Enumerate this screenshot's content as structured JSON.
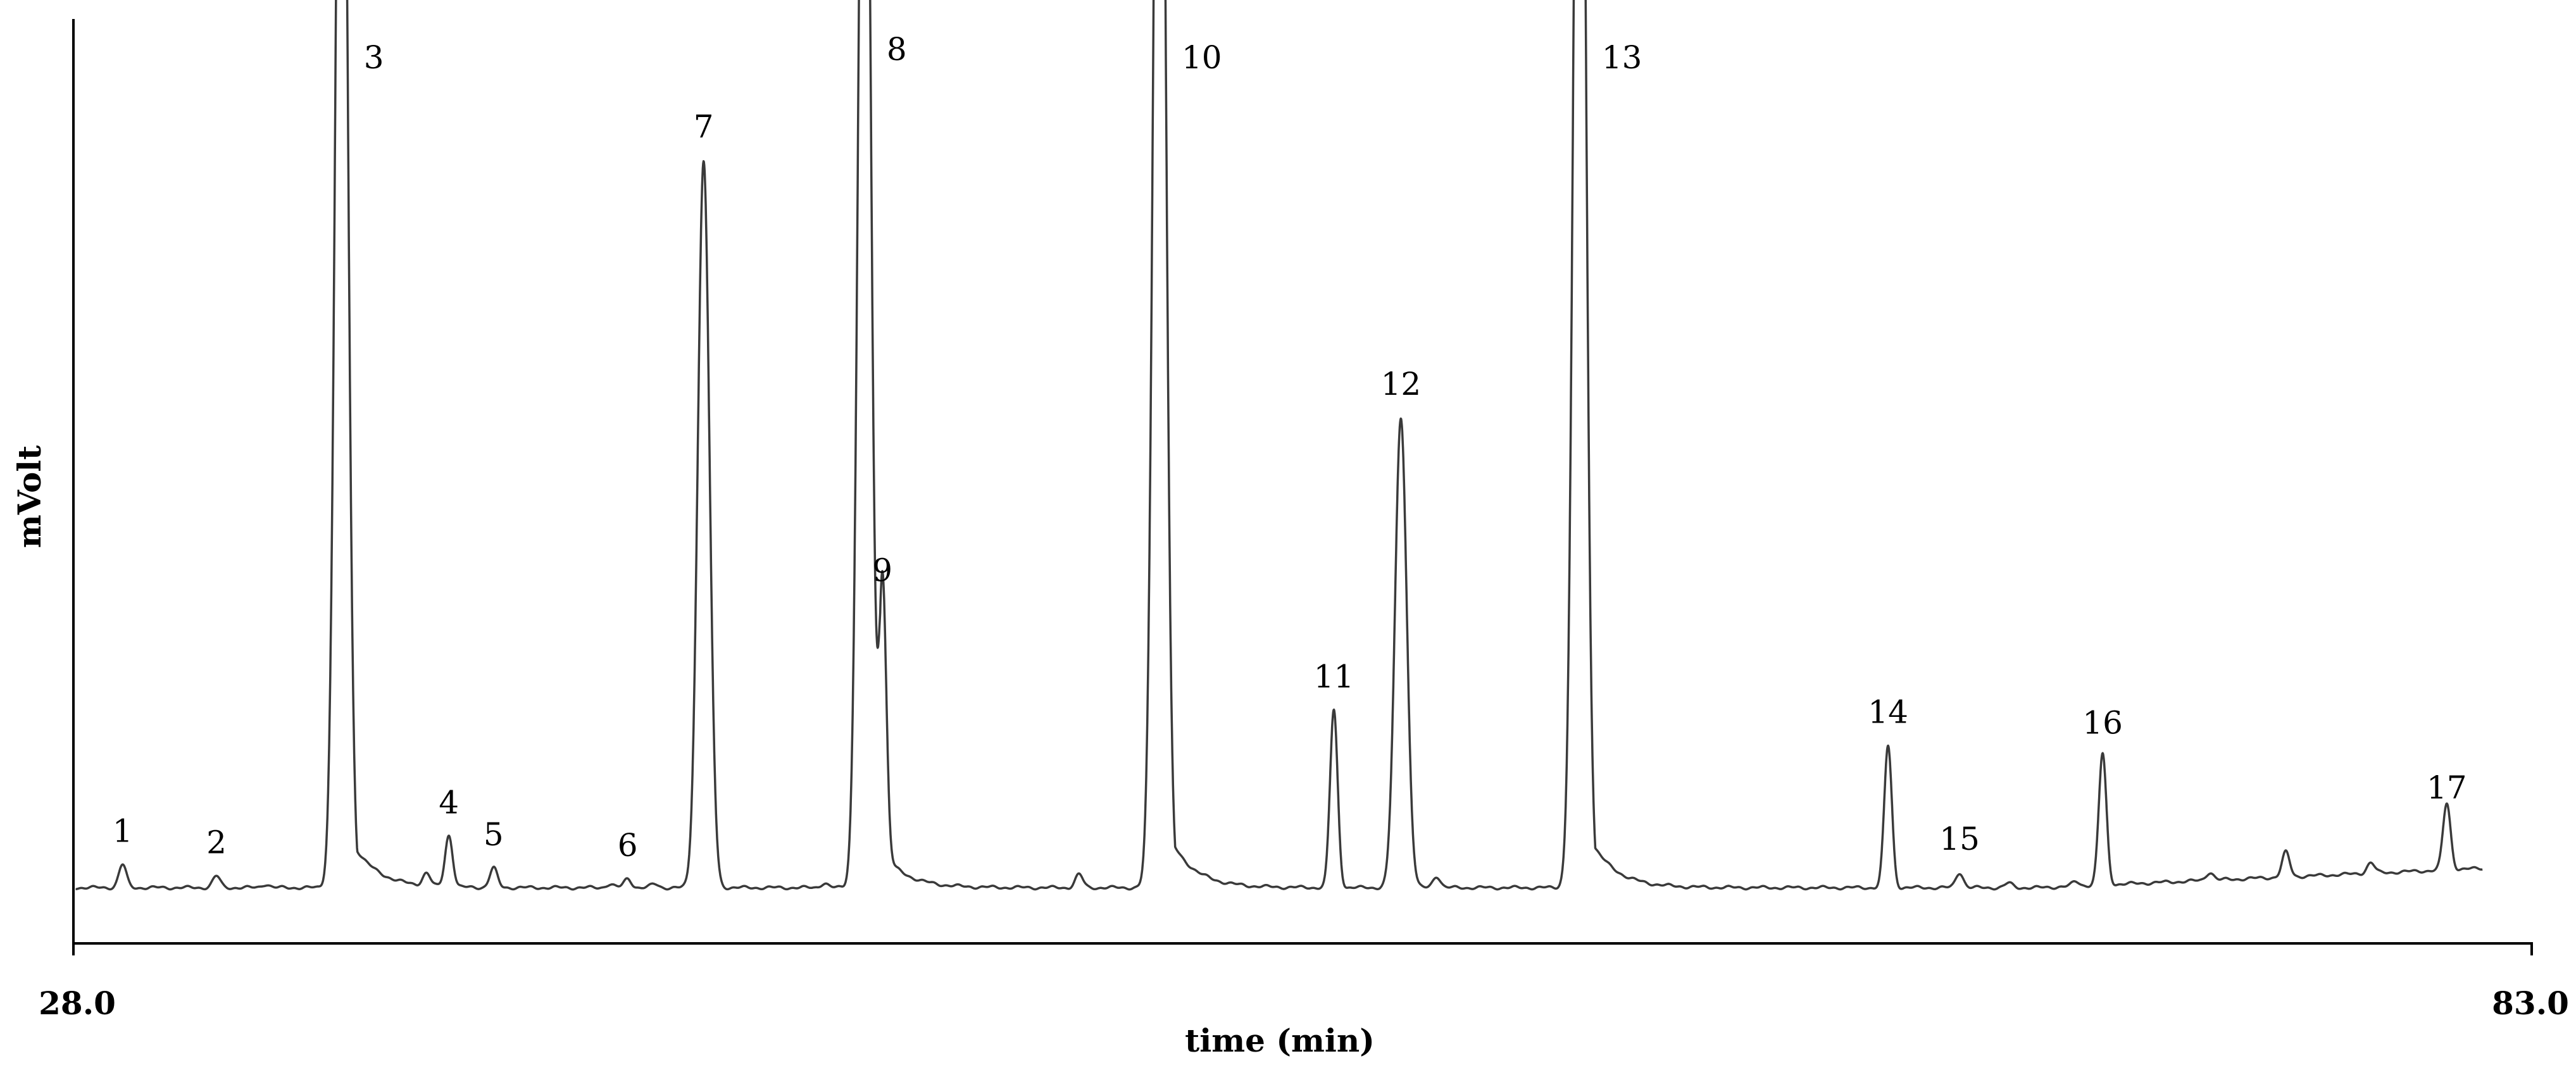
{
  "chart_data": {
    "type": "line",
    "title": "",
    "xlabel": "time (min)",
    "ylabel": "mVolt",
    "xlim": [
      28.0,
      83.0
    ],
    "ylim": [
      0,
      100
    ],
    "x_tick_labels": [
      "28.0",
      "83.0"
    ],
    "grid": false,
    "legend": "none",
    "baseline": 3.0,
    "series": [
      {
        "peaks": [
          {
            "label": "1",
            "time": 29.1,
            "height": 2.6
          },
          {
            "label": "2",
            "time": 31.2,
            "height": 1.3
          },
          {
            "label": "3",
            "time": 34.0,
            "height": 160
          },
          {
            "label": "4",
            "time": 36.4,
            "height": 5.8
          },
          {
            "label": "5",
            "time": 37.4,
            "height": 2.2
          },
          {
            "label": "6",
            "time": 40.4,
            "height": 1.0
          },
          {
            "label": "7",
            "time": 42.1,
            "height": 82
          },
          {
            "label": "8",
            "time": 45.7,
            "height": 160
          },
          {
            "label": "9",
            "time": 46.1,
            "height": 32
          },
          {
            "label": "10",
            "time": 52.3,
            "height": 170
          },
          {
            "label": "11",
            "time": 56.2,
            "height": 20
          },
          {
            "label": "12",
            "time": 57.7,
            "height": 53
          },
          {
            "label": "13",
            "time": 61.7,
            "height": 170
          },
          {
            "label": "14",
            "time": 68.6,
            "height": 16
          },
          {
            "label": "15",
            "time": 70.2,
            "height": 1.7
          },
          {
            "label": "16",
            "time": 73.4,
            "height": 14.8
          },
          {
            "label": "17",
            "time": 81.1,
            "height": 7.5
          }
        ],
        "minor_peaks": [
          {
            "time": 32.3,
            "height": 0.4
          },
          {
            "time": 35.9,
            "height": 1.4
          },
          {
            "time": 40.0,
            "height": 0.4
          },
          {
            "time": 41.0,
            "height": 0.4
          },
          {
            "time": 44.8,
            "height": 0.5
          },
          {
            "time": 50.5,
            "height": 1.5
          },
          {
            "time": 58.5,
            "height": 1.3
          },
          {
            "time": 71.3,
            "height": 0.5
          },
          {
            "time": 72.8,
            "height": 0.5
          },
          {
            "time": 75.8,
            "height": 0.9
          },
          {
            "time": 77.5,
            "height": 2.8
          },
          {
            "time": 79.4,
            "height": 1.2
          }
        ]
      }
    ]
  },
  "colors": {
    "trace": "#3a3a3a",
    "axis": "#000000",
    "background": "#ffffff"
  }
}
